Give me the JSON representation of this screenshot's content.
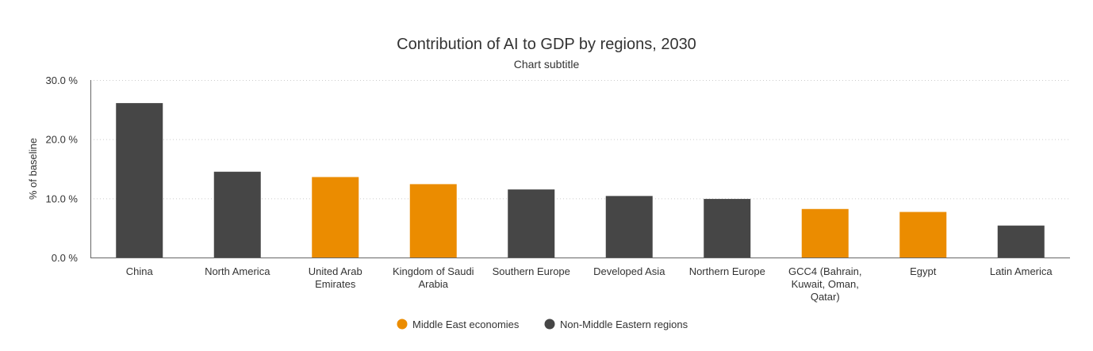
{
  "chart_data": {
    "type": "bar",
    "title": "Contribution of AI to GDP by regions, 2030",
    "subtitle": "Chart subtitle",
    "ylabel": "% of baseline",
    "xlabel": "",
    "ylim": [
      0,
      30
    ],
    "yticks": [
      0,
      10,
      20,
      30
    ],
    "ytick_labels": [
      "0.0 %",
      "10.0 %",
      "20.0 %",
      "30.0 %"
    ],
    "grid": true,
    "legend_position": "bottom",
    "categories": [
      [
        "China"
      ],
      [
        "North America"
      ],
      [
        "United Arab",
        "Emirates"
      ],
      [
        "Kingdom of Saudi",
        "Arabia"
      ],
      [
        "Southern Europe"
      ],
      [
        "Developed Asia"
      ],
      [
        "Northern Europe"
      ],
      [
        "GCC4 (Bahrain,",
        "Kuwait, Oman,",
        "Qatar)"
      ],
      [
        "Egypt"
      ],
      [
        "Latin America"
      ]
    ],
    "values": [
      26.1,
      14.5,
      13.6,
      12.4,
      11.5,
      10.4,
      9.9,
      8.2,
      7.7,
      5.4
    ],
    "groups": [
      1,
      1,
      0,
      0,
      1,
      1,
      1,
      0,
      0,
      1
    ],
    "legend": [
      {
        "name": "Middle East economies",
        "color": "#eb8c00"
      },
      {
        "name": "Non-Middle Eastern regions",
        "color": "#464646"
      }
    ]
  }
}
